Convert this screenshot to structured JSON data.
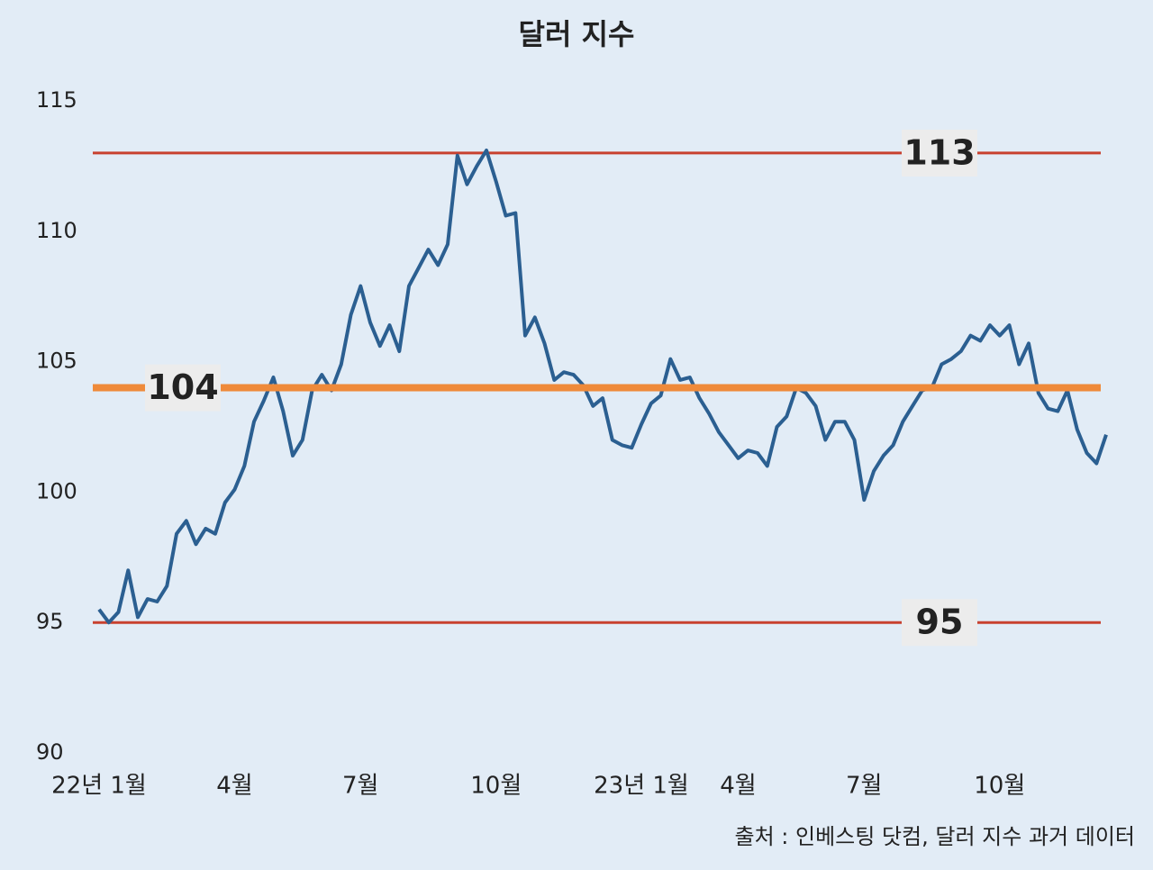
{
  "chart_data": {
    "type": "line",
    "title": "달러 지수",
    "source": "출처 : 인베스팅 닷컴, 달러 지수 과거 데이터",
    "categories": [
      "22년 1월",
      null,
      null,
      null,
      null,
      null,
      null,
      null,
      null,
      null,
      null,
      null,
      null,
      null,
      "4월",
      null,
      null,
      null,
      null,
      null,
      null,
      null,
      null,
      null,
      null,
      null,
      null,
      "7월",
      null,
      null,
      null,
      null,
      null,
      null,
      null,
      null,
      null,
      null,
      null,
      null,
      null,
      "10월",
      null,
      null,
      null,
      null,
      null,
      null,
      null,
      null,
      null,
      null,
      null,
      null,
      null,
      null,
      "23년 1월",
      null,
      null,
      null,
      null,
      null,
      null,
      null,
      null,
      null,
      "4월",
      null,
      null,
      null,
      null,
      null,
      null,
      null,
      null,
      null,
      null,
      null,
      null,
      "7월",
      null,
      null,
      null,
      null,
      null,
      null,
      null,
      null,
      null,
      null,
      null,
      null,
      null,
      "10월",
      null,
      null,
      null,
      null,
      null,
      null,
      null,
      null,
      null,
      null,
      null
    ],
    "series": [
      {
        "name": "달러 지수",
        "color": "#2b5f91",
        "values": [
          95.5,
          95.0,
          95.4,
          97.0,
          95.2,
          95.9,
          95.8,
          96.4,
          98.4,
          98.9,
          98.0,
          98.6,
          98.4,
          99.6,
          100.1,
          101.0,
          102.7,
          103.5,
          104.4,
          103.1,
          101.4,
          102.0,
          103.9,
          104.5,
          103.9,
          104.9,
          106.8,
          107.9,
          106.5,
          105.6,
          106.4,
          105.4,
          107.9,
          108.6,
          109.3,
          108.7,
          109.5,
          112.9,
          111.8,
          112.5,
          113.1,
          111.9,
          110.6,
          110.7,
          106.0,
          106.7,
          105.7,
          104.3,
          104.6,
          104.5,
          104.1,
          103.3,
          103.6,
          102.0,
          101.8,
          101.7,
          102.6,
          103.4,
          103.7,
          105.1,
          104.3,
          104.4,
          103.6,
          103.0,
          102.3,
          101.8,
          101.3,
          101.6,
          101.5,
          101.0,
          102.5,
          102.9,
          104.0,
          103.8,
          103.3,
          102.0,
          102.7,
          102.7,
          102.0,
          99.7,
          100.8,
          101.4,
          101.8,
          102.7,
          103.3,
          103.9,
          104.0,
          104.9,
          105.1,
          105.4,
          106.0,
          105.8,
          106.4,
          106.0,
          106.4,
          104.9,
          105.7,
          103.8,
          103.2,
          103.1,
          103.9,
          102.4,
          101.5,
          101.1,
          102.2
        ]
      }
    ],
    "reference_lines": [
      {
        "value": 113,
        "color": "#c8412f"
      },
      {
        "value": 104,
        "color": "#ef8a3a"
      },
      {
        "value": 95,
        "color": "#c8412f"
      }
    ],
    "ylim": [
      90,
      115
    ],
    "yticks": [
      90,
      95,
      100,
      105,
      110,
      115
    ],
    "grid": false
  }
}
